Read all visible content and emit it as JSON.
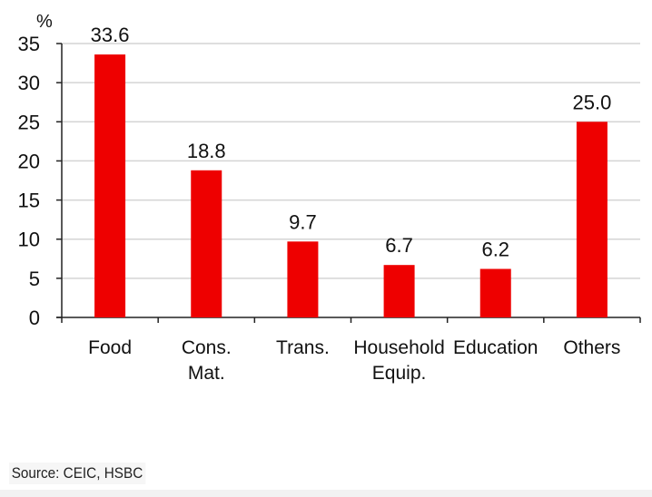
{
  "chart_data": {
    "type": "bar",
    "title": "",
    "xlabel": "",
    "ylabel": "%",
    "ylim": [
      0,
      35
    ],
    "yticks": [
      0,
      5,
      10,
      15,
      20,
      25,
      30,
      35
    ],
    "grid": true,
    "categories": [
      [
        "Food"
      ],
      [
        "Cons.",
        "Mat."
      ],
      [
        "Trans."
      ],
      [
        "Household",
        "Equip."
      ],
      [
        "Education"
      ],
      [
        "Others"
      ]
    ],
    "values": [
      33.6,
      18.8,
      9.7,
      6.7,
      6.2,
      25.0
    ],
    "data_labels": [
      "33.6",
      "18.8",
      "9.7",
      "6.7",
      "6.2",
      "25.0"
    ],
    "bar_color": "#ee0000"
  },
  "source": "Source: CEIC, HSBC"
}
